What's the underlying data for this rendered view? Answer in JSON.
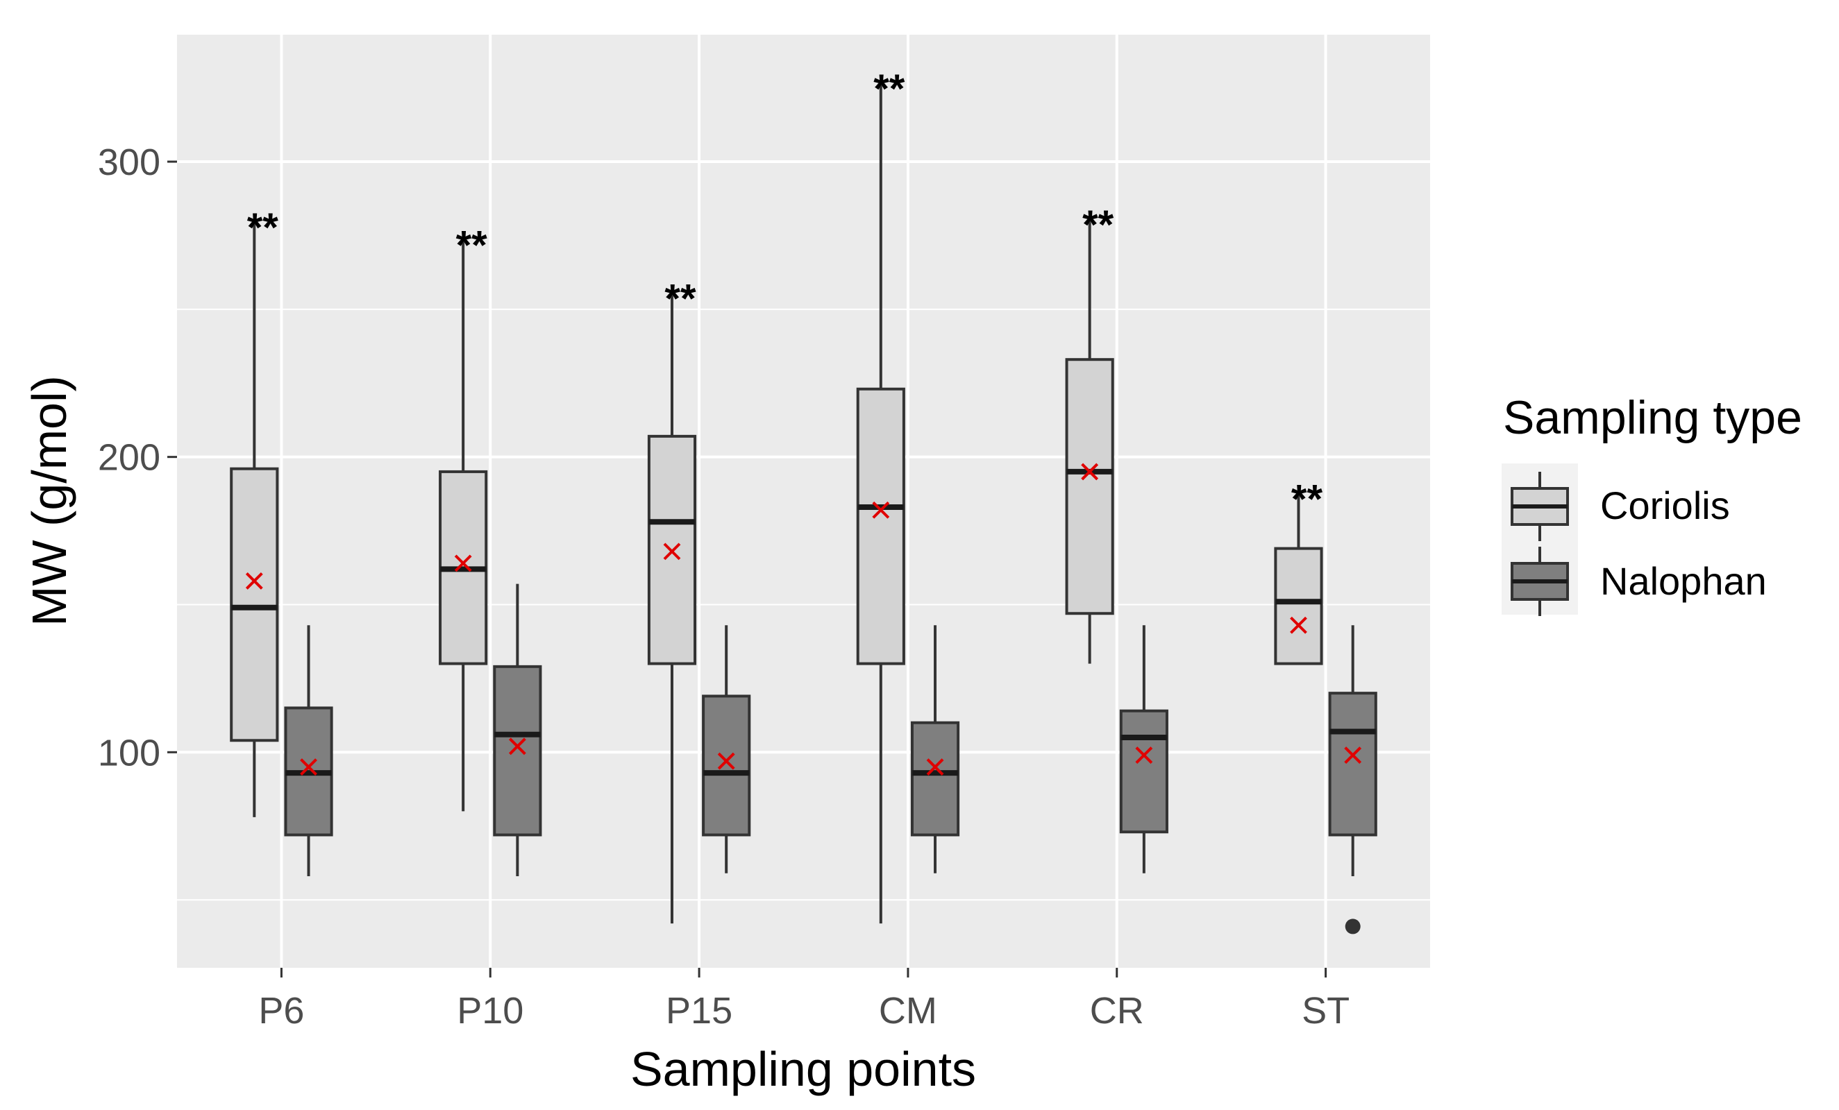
{
  "chart_data": {
    "type": "boxplot",
    "xlabel": "Sampling points",
    "ylabel": "MW (g/mol)",
    "y_ticks": [
      100,
      200,
      300
    ],
    "ylim": [
      27,
      343
    ],
    "categories": [
      "P6",
      "P10",
      "P15",
      "CM",
      "CR",
      "ST"
    ],
    "legend": {
      "title": "Sampling type",
      "position": "right",
      "entries": [
        "Coriolis",
        "Nalophan"
      ]
    },
    "colors": {
      "panel": "#ebebeb",
      "grid": "#ffffff",
      "Coriolis": "#d3d3d3",
      "Nalophan": "#7f7f7f",
      "outline": "#333333",
      "mean_marker": "#e00000"
    },
    "series": [
      {
        "name": "Coriolis",
        "boxes": [
          {
            "category": "P6",
            "whisker_low": 78,
            "q1": 104,
            "median": 149,
            "q3": 196,
            "whisker_high": 280,
            "mean": 158,
            "significance": "**"
          },
          {
            "category": "P10",
            "whisker_low": 80,
            "q1": 130,
            "median": 162,
            "q3": 195,
            "whisker_high": 274,
            "mean": 164,
            "significance": "**"
          },
          {
            "category": "P15",
            "whisker_low": 42,
            "q1": 130,
            "median": 178,
            "q3": 207,
            "whisker_high": 256,
            "mean": 168,
            "significance": "**"
          },
          {
            "category": "CM",
            "whisker_low": 42,
            "q1": 130,
            "median": 183,
            "q3": 223,
            "whisker_high": 327,
            "mean": 182,
            "significance": "**"
          },
          {
            "category": "CR",
            "whisker_low": 130,
            "q1": 147,
            "median": 195,
            "q3": 233,
            "whisker_high": 281,
            "mean": 195,
            "significance": "**"
          },
          {
            "category": "ST",
            "whisker_low": 130,
            "q1": 130,
            "median": 151,
            "q3": 169,
            "whisker_high": 188,
            "mean": 143,
            "significance": "**"
          }
        ]
      },
      {
        "name": "Nalophan",
        "boxes": [
          {
            "category": "P6",
            "whisker_low": 58,
            "q1": 72,
            "median": 93,
            "q3": 115,
            "whisker_high": 143,
            "mean": 95
          },
          {
            "category": "P10",
            "whisker_low": 58,
            "q1": 72,
            "median": 106,
            "q3": 129,
            "whisker_high": 157,
            "mean": 102
          },
          {
            "category": "P15",
            "whisker_low": 59,
            "q1": 72,
            "median": 93,
            "q3": 119,
            "whisker_high": 143,
            "mean": 97
          },
          {
            "category": "CM",
            "whisker_low": 59,
            "q1": 72,
            "median": 93,
            "q3": 110,
            "whisker_high": 143,
            "mean": 95
          },
          {
            "category": "CR",
            "whisker_low": 59,
            "q1": 73,
            "median": 105,
            "q3": 114,
            "whisker_high": 143,
            "mean": 99
          },
          {
            "category": "ST",
            "whisker_low": 58,
            "q1": 72,
            "median": 107,
            "q3": 120,
            "whisker_high": 143,
            "mean": 99,
            "outliers": [
              41
            ]
          }
        ]
      }
    ]
  }
}
